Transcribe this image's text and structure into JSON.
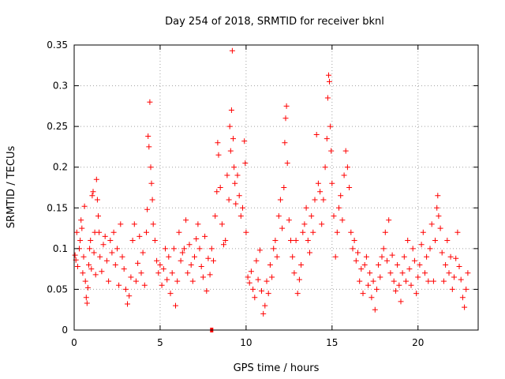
{
  "chart_data": {
    "type": "scatter",
    "title": "Day 254 of 2018, SRMTID for receiver bknl",
    "xlabel": "GPS time / hours",
    "ylabel": "SRMTID / TECUs",
    "xlim": [
      0,
      23.5
    ],
    "ylim": [
      0,
      0.35
    ],
    "xticks": [
      0,
      5,
      10,
      15,
      20
    ],
    "xtick_labels": [
      "0",
      "5",
      "10",
      "15",
      "20"
    ],
    "yticks": [
      0,
      0.05,
      0.1,
      0.15,
      0.2,
      0.25,
      0.3,
      0.35
    ],
    "ytick_labels": [
      "0",
      "0.05",
      "0.1",
      "0.15",
      "0.2",
      "0.25",
      "0.3",
      "0.35"
    ],
    "grid": true,
    "marker": "+",
    "color": "#ff0000",
    "series": [
      {
        "name": "SRMTID",
        "points": [
          [
            0.05,
            0.092
          ],
          [
            0.1,
            0.086
          ],
          [
            0.15,
            0.12
          ],
          [
            0.2,
            0.078
          ],
          [
            0.3,
            0.1
          ],
          [
            0.35,
            0.11
          ],
          [
            0.4,
            0.135
          ],
          [
            0.45,
            0.125
          ],
          [
            0.5,
            0.07
          ],
          [
            0.55,
            0.09
          ],
          [
            0.6,
            0.152
          ],
          [
            0.65,
            0.06
          ],
          [
            0.7,
            0.04
          ],
          [
            0.75,
            0.033
          ],
          [
            0.8,
            0.052
          ],
          [
            0.85,
            0.08
          ],
          [
            0.9,
            0.1
          ],
          [
            0.95,
            0.11
          ],
          [
            1.0,
            0.075
          ],
          [
            1.05,
            0.165
          ],
          [
            1.1,
            0.17
          ],
          [
            1.15,
            0.095
          ],
          [
            1.2,
            0.12
          ],
          [
            1.25,
            0.068
          ],
          [
            1.3,
            0.185
          ],
          [
            1.35,
            0.16
          ],
          [
            1.4,
            0.14
          ],
          [
            1.45,
            0.12
          ],
          [
            1.5,
            0.09
          ],
          [
            1.6,
            0.072
          ],
          [
            1.7,
            0.105
          ],
          [
            1.8,
            0.115
          ],
          [
            1.9,
            0.085
          ],
          [
            2.0,
            0.06
          ],
          [
            2.1,
            0.11
          ],
          [
            2.2,
            0.095
          ],
          [
            2.3,
            0.12
          ],
          [
            2.4,
            0.08
          ],
          [
            2.5,
            0.1
          ],
          [
            2.6,
            0.055
          ],
          [
            2.7,
            0.13
          ],
          [
            2.8,
            0.09
          ],
          [
            2.9,
            0.075
          ],
          [
            3.0,
            0.05
          ],
          [
            3.1,
            0.032
          ],
          [
            3.2,
            0.042
          ],
          [
            3.3,
            0.065
          ],
          [
            3.4,
            0.11
          ],
          [
            3.5,
            0.13
          ],
          [
            3.6,
            0.06
          ],
          [
            3.7,
            0.082
          ],
          [
            3.8,
            0.115
          ],
          [
            3.9,
            0.07
          ],
          [
            4.0,
            0.095
          ],
          [
            4.1,
            0.055
          ],
          [
            4.2,
            0.12
          ],
          [
            4.25,
            0.148
          ],
          [
            4.3,
            0.238
          ],
          [
            4.35,
            0.225
          ],
          [
            4.4,
            0.28
          ],
          [
            4.45,
            0.2
          ],
          [
            4.5,
            0.18
          ],
          [
            4.55,
            0.16
          ],
          [
            4.6,
            0.13
          ],
          [
            4.7,
            0.11
          ],
          [
            4.8,
            0.085
          ],
          [
            4.9,
            0.07
          ],
          [
            5.0,
            0.08
          ],
          [
            5.1,
            0.055
          ],
          [
            5.2,
            0.075
          ],
          [
            5.3,
            0.1
          ],
          [
            5.4,
            0.062
          ],
          [
            5.5,
            0.09
          ],
          [
            5.6,
            0.045
          ],
          [
            5.7,
            0.07
          ],
          [
            5.8,
            0.1
          ],
          [
            5.9,
            0.03
          ],
          [
            6.0,
            0.06
          ],
          [
            6.1,
            0.12
          ],
          [
            6.2,
            0.085
          ],
          [
            6.3,
            0.095
          ],
          [
            6.4,
            0.1
          ],
          [
            6.5,
            0.135
          ],
          [
            6.6,
            0.07
          ],
          [
            6.7,
            0.105
          ],
          [
            6.8,
            0.08
          ],
          [
            6.9,
            0.06
          ],
          [
            7.0,
            0.09
          ],
          [
            7.1,
            0.112
          ],
          [
            7.2,
            0.13
          ],
          [
            7.3,
            0.1
          ],
          [
            7.4,
            0.078
          ],
          [
            7.5,
            0.065
          ],
          [
            7.6,
            0.115
          ],
          [
            7.7,
            0.048
          ],
          [
            7.8,
            0.088
          ],
          [
            7.9,
            0.068
          ],
          [
            8.0,
            0.1
          ],
          [
            8.1,
            0.085
          ],
          [
            8.2,
            0.14
          ],
          [
            8.3,
            0.17
          ],
          [
            8.35,
            0.23
          ],
          [
            8.4,
            0.215
          ],
          [
            8.5,
            0.175
          ],
          [
            8.6,
            0.13
          ],
          [
            8.7,
            0.105
          ],
          [
            8.8,
            0.11
          ],
          [
            8.9,
            0.19
          ],
          [
            9.0,
            0.16
          ],
          [
            9.05,
            0.25
          ],
          [
            9.1,
            0.22
          ],
          [
            9.15,
            0.27
          ],
          [
            9.2,
            0.343
          ],
          [
            9.25,
            0.235
          ],
          [
            9.3,
            0.2
          ],
          [
            9.35,
            0.18
          ],
          [
            9.4,
            0.155
          ],
          [
            9.5,
            0.19
          ],
          [
            9.6,
            0.165
          ],
          [
            9.7,
            0.14
          ],
          [
            9.8,
            0.15
          ],
          [
            9.9,
            0.232
          ],
          [
            9.95,
            0.205
          ],
          [
            10.0,
            0.12
          ],
          [
            10.1,
            0.065
          ],
          [
            10.2,
            0.058
          ],
          [
            10.3,
            0.072
          ],
          [
            10.4,
            0.05
          ],
          [
            10.5,
            0.04
          ],
          [
            10.6,
            0.085
          ],
          [
            10.7,
            0.062
          ],
          [
            10.8,
            0.098
          ],
          [
            10.9,
            0.048
          ],
          [
            11.0,
            0.02
          ],
          [
            11.1,
            0.03
          ],
          [
            11.2,
            0.06
          ],
          [
            11.3,
            0.045
          ],
          [
            11.4,
            0.08
          ],
          [
            11.5,
            0.065
          ],
          [
            11.6,
            0.1
          ],
          [
            11.7,
            0.11
          ],
          [
            11.8,
            0.09
          ],
          [
            11.9,
            0.14
          ],
          [
            12.0,
            0.16
          ],
          [
            12.1,
            0.125
          ],
          [
            12.2,
            0.175
          ],
          [
            12.25,
            0.23
          ],
          [
            12.3,
            0.26
          ],
          [
            12.35,
            0.275
          ],
          [
            12.4,
            0.205
          ],
          [
            12.5,
            0.135
          ],
          [
            12.6,
            0.11
          ],
          [
            12.7,
            0.09
          ],
          [
            12.8,
            0.07
          ],
          [
            12.9,
            0.11
          ],
          [
            13.0,
            0.045
          ],
          [
            13.1,
            0.062
          ],
          [
            13.2,
            0.08
          ],
          [
            13.3,
            0.12
          ],
          [
            13.4,
            0.13
          ],
          [
            13.5,
            0.15
          ],
          [
            13.6,
            0.11
          ],
          [
            13.7,
            0.095
          ],
          [
            13.8,
            0.14
          ],
          [
            13.9,
            0.12
          ],
          [
            14.0,
            0.16
          ],
          [
            14.1,
            0.24
          ],
          [
            14.2,
            0.18
          ],
          [
            14.3,
            0.17
          ],
          [
            14.4,
            0.13
          ],
          [
            14.5,
            0.16
          ],
          [
            14.6,
            0.2
          ],
          [
            14.7,
            0.235
          ],
          [
            14.75,
            0.285
          ],
          [
            14.8,
            0.313
          ],
          [
            14.85,
            0.305
          ],
          [
            14.9,
            0.25
          ],
          [
            14.95,
            0.22
          ],
          [
            15.0,
            0.18
          ],
          [
            15.1,
            0.14
          ],
          [
            15.2,
            0.09
          ],
          [
            15.3,
            0.12
          ],
          [
            15.4,
            0.15
          ],
          [
            15.5,
            0.165
          ],
          [
            15.6,
            0.135
          ],
          [
            15.7,
            0.19
          ],
          [
            15.8,
            0.22
          ],
          [
            15.9,
            0.2
          ],
          [
            16.0,
            0.175
          ],
          [
            16.1,
            0.12
          ],
          [
            16.2,
            0.1
          ],
          [
            16.3,
            0.11
          ],
          [
            16.4,
            0.085
          ],
          [
            16.5,
            0.095
          ],
          [
            16.6,
            0.06
          ],
          [
            16.7,
            0.075
          ],
          [
            16.8,
            0.045
          ],
          [
            16.9,
            0.08
          ],
          [
            17.0,
            0.09
          ],
          [
            17.1,
            0.055
          ],
          [
            17.2,
            0.07
          ],
          [
            17.3,
            0.04
          ],
          [
            17.4,
            0.06
          ],
          [
            17.5,
            0.025
          ],
          [
            17.6,
            0.05
          ],
          [
            17.7,
            0.08
          ],
          [
            17.8,
            0.065
          ],
          [
            17.9,
            0.09
          ],
          [
            18.0,
            0.1
          ],
          [
            18.1,
            0.12
          ],
          [
            18.2,
            0.085
          ],
          [
            18.3,
            0.135
          ],
          [
            18.4,
            0.07
          ],
          [
            18.5,
            0.092
          ],
          [
            18.6,
            0.06
          ],
          [
            18.7,
            0.048
          ],
          [
            18.8,
            0.08
          ],
          [
            18.9,
            0.055
          ],
          [
            19.0,
            0.035
          ],
          [
            19.1,
            0.07
          ],
          [
            19.2,
            0.09
          ],
          [
            19.3,
            0.06
          ],
          [
            19.4,
            0.11
          ],
          [
            19.5,
            0.075
          ],
          [
            19.6,
            0.055
          ],
          [
            19.7,
            0.1
          ],
          [
            19.8,
            0.085
          ],
          [
            19.9,
            0.045
          ],
          [
            20.0,
            0.065
          ],
          [
            20.1,
            0.08
          ],
          [
            20.2,
            0.105
          ],
          [
            20.3,
            0.12
          ],
          [
            20.4,
            0.07
          ],
          [
            20.5,
            0.09
          ],
          [
            20.6,
            0.06
          ],
          [
            20.7,
            0.1
          ],
          [
            20.8,
            0.13
          ],
          [
            20.9,
            0.06
          ],
          [
            21.0,
            0.11
          ],
          [
            21.1,
            0.15
          ],
          [
            21.15,
            0.165
          ],
          [
            21.2,
            0.14
          ],
          [
            21.3,
            0.125
          ],
          [
            21.4,
            0.095
          ],
          [
            21.5,
            0.06
          ],
          [
            21.6,
            0.08
          ],
          [
            21.7,
            0.11
          ],
          [
            21.8,
            0.07
          ],
          [
            21.9,
            0.09
          ],
          [
            22.0,
            0.05
          ],
          [
            22.1,
            0.065
          ],
          [
            22.2,
            0.088
          ],
          [
            22.3,
            0.12
          ],
          [
            22.4,
            0.078
          ],
          [
            22.5,
            0.062
          ],
          [
            22.6,
            0.04
          ],
          [
            22.7,
            0.028
          ],
          [
            22.8,
            0.05
          ],
          [
            22.9,
            0.07
          ]
        ]
      }
    ],
    "flagged_points": [
      [
        8.0,
        0.0
      ]
    ]
  }
}
